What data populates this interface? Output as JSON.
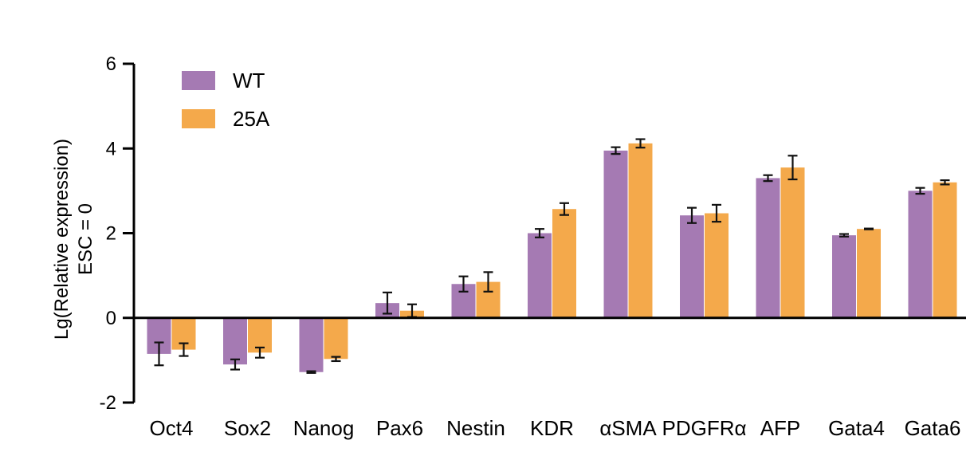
{
  "chart_data": {
    "type": "bar",
    "title": "",
    "xlabel": "",
    "ylabel": "Lg(Relative expression)",
    "ylabel_line2": "ESC = 0",
    "ylim": [
      -2,
      6
    ],
    "yticks": [
      -2,
      0,
      2,
      4,
      6
    ],
    "ytick_labels": [
      "-2",
      "0",
      "2",
      "4",
      "6"
    ],
    "grid": false,
    "legend_position": "top-left",
    "categories": [
      "Oct4",
      "Sox2",
      "Nanog",
      "Pax6",
      "Nestin",
      "KDR",
      "αSMA",
      "PDGFRα",
      "AFP",
      "Gata4",
      "Gata6"
    ],
    "series": [
      {
        "name": "WT",
        "color": "#a57ab3",
        "values": [
          -0.85,
          -1.1,
          -1.28,
          0.35,
          0.8,
          2.0,
          3.95,
          2.42,
          3.3,
          1.95,
          3.0
        ],
        "errors": [
          0.27,
          0.12,
          0.02,
          0.25,
          0.18,
          0.1,
          0.08,
          0.18,
          0.07,
          0.03,
          0.07
        ]
      },
      {
        "name": "25A",
        "color": "#f4a94b",
        "values": [
          -0.75,
          -0.82,
          -0.97,
          0.17,
          0.85,
          2.57,
          4.12,
          2.47,
          3.55,
          2.1,
          3.2
        ],
        "errors": [
          0.15,
          0.12,
          0.05,
          0.15,
          0.23,
          0.14,
          0.1,
          0.2,
          0.28,
          0.01,
          0.05
        ]
      }
    ]
  }
}
